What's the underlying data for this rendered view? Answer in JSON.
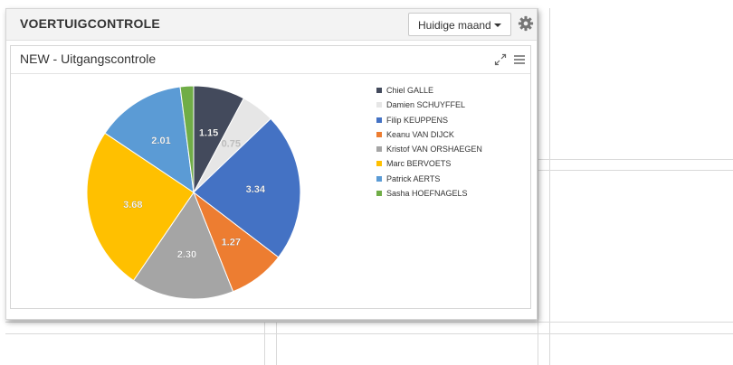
{
  "panel": {
    "title": "VOERTUIGCONTROLE",
    "period_selected": "Huidige maand",
    "settings_icon": "gear-icon"
  },
  "widget": {
    "title": "NEW - Uitgangscontrole",
    "expand_icon": "expand-icon",
    "menu_icon": "hamburger-menu-icon"
  },
  "chart_data": {
    "type": "pie",
    "series": [
      {
        "name": "Chiel GALLE",
        "value": 1.15,
        "label": "1.15",
        "color": "#434a5c"
      },
      {
        "name": "Damien SCHUYFFEL",
        "value": 0.75,
        "label": "0.75",
        "color": "#e6e6e6"
      },
      {
        "name": "Filip KEUPPENS",
        "value": 3.34,
        "label": "3.34",
        "color": "#4472c4"
      },
      {
        "name": "Keanu VAN DIJCK",
        "value": 1.27,
        "label": "1.27",
        "color": "#ed7d31"
      },
      {
        "name": "Kristof VAN ORSHAEGEN",
        "value": 2.3,
        "label": "2.30",
        "color": "#a5a5a5"
      },
      {
        "name": "Marc BERVOETS",
        "value": 3.68,
        "label": "3.68",
        "color": "#ffc000"
      },
      {
        "name": "Patrick AERTS",
        "value": 2.01,
        "label": "2.01",
        "color": "#5b9bd5"
      },
      {
        "name": "Sasha HOEFNAGELS",
        "value": 0.3,
        "label": "",
        "color": "#70ad47"
      }
    ],
    "legend_position": "right"
  }
}
